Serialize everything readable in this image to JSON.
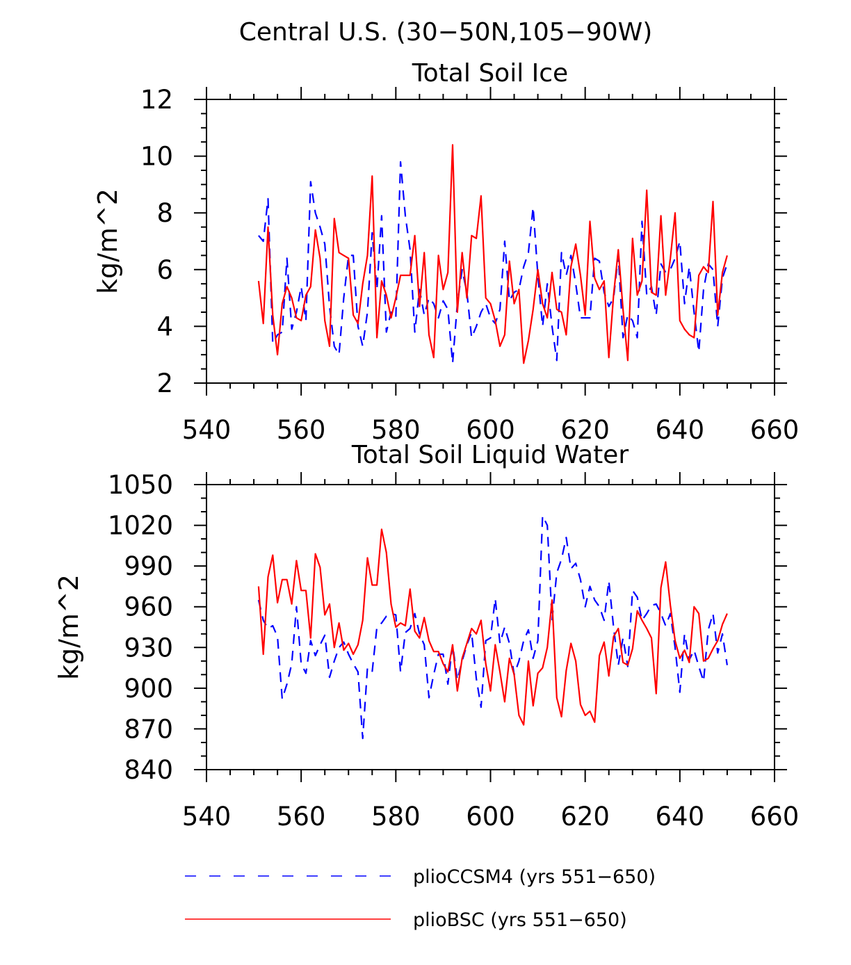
{
  "figure_title": "Central U.S. (30−50N,105−90W)",
  "legend": {
    "items": [
      {
        "label": "plioCCSM4 (yrs 551−650)",
        "color": "#0000ff",
        "style": "dashed"
      },
      {
        "label": "plioBSC (yrs 551−650)",
        "color": "#ff0000",
        "style": "solid"
      }
    ]
  },
  "chart_data": [
    {
      "type": "line",
      "title": "Total Soil Ice",
      "xlabel": "",
      "ylabel": "kg/m^2",
      "xlim": [
        540,
        660
      ],
      "ylim": [
        2,
        12
      ],
      "x_ticks": [
        540,
        560,
        580,
        600,
        620,
        640,
        660
      ],
      "y_ticks": [
        2,
        4,
        6,
        8,
        10,
        12
      ],
      "x_tick_labels": [
        "540",
        "560",
        "580",
        "600",
        "620",
        "640",
        "660"
      ],
      "y_tick_labels": [
        "2",
        "4",
        "6",
        "8",
        "10",
        "12"
      ],
      "x_start": 551,
      "x_end": 650,
      "grid": false,
      "legend_position": "bottom",
      "series": [
        {
          "name": "plioCCSM4 (yrs 551−650)",
          "color": "#0000ff",
          "style": "dashed",
          "values": [
            7.2,
            7.0,
            8.5,
            3.4,
            3.7,
            3.8,
            6.4,
            3.9,
            4.5,
            5.4,
            4.2,
            9.1,
            8.0,
            7.5,
            6.9,
            4.7,
            3.3,
            3.0,
            5.0,
            6.5,
            6.5,
            4.0,
            3.3,
            4.5,
            7.3,
            5.3,
            7.9,
            3.8,
            4.5,
            4.3,
            9.8,
            7.9,
            6.7,
            3.8,
            5.3,
            4.4,
            5.0,
            4.8,
            4.3,
            4.9,
            4.6,
            2.7,
            4.8,
            6.0,
            5.2,
            3.6,
            4.0,
            4.5,
            4.8,
            4.3,
            4.1,
            4.6,
            7.0,
            4.9,
            5.2,
            5.3,
            6.1,
            6.6,
            8.2,
            5.8,
            4.0,
            5.5,
            4.0,
            2.8,
            6.6,
            5.8,
            6.5,
            5.5,
            4.3,
            4.3,
            4.3,
            6.4,
            6.3,
            5.2,
            4.7,
            5.0,
            6.5,
            3.6,
            4.4,
            4.2,
            3.6,
            7.7,
            5.1,
            5.4,
            4.4,
            6.2,
            5.9,
            6.0,
            6.4,
            7.0,
            4.8,
            6.1,
            4.5,
            3.1,
            5.3,
            6.2,
            6.0,
            4.0,
            5.7,
            6.2
          ]
        },
        {
          "name": "plioBSC (yrs 551−650)",
          "color": "#ff0000",
          "style": "solid",
          "values": [
            5.6,
            4.1,
            7.5,
            4.4,
            3.0,
            4.8,
            5.4,
            5.0,
            4.3,
            4.2,
            5.1,
            5.4,
            7.4,
            6.4,
            4.2,
            3.3,
            7.8,
            6.6,
            6.5,
            6.4,
            4.4,
            4.1,
            5.5,
            6.5,
            9.3,
            3.6,
            5.6,
            5.1,
            4.3,
            5.0,
            5.8,
            5.8,
            5.8,
            7.2,
            4.7,
            6.6,
            3.7,
            2.9,
            6.5,
            5.3,
            5.9,
            10.4,
            4.5,
            6.6,
            5.0,
            7.2,
            7.1,
            8.6,
            5.0,
            4.8,
            4.2,
            3.3,
            3.7,
            6.3,
            4.8,
            5.3,
            2.7,
            3.5,
            4.6,
            6.0,
            4.8,
            4.3,
            5.9,
            4.6,
            4.5,
            3.7,
            6.1,
            6.9,
            5.8,
            4.4,
            7.7,
            5.7,
            5.3,
            5.6,
            2.9,
            5.1,
            6.7,
            4.6,
            2.8,
            7.1,
            5.1,
            5.6,
            8.8,
            5.2,
            5.1,
            7.9,
            5.1,
            6.4,
            8.0,
            4.2,
            3.9,
            3.7,
            3.6,
            5.8,
            6.1,
            5.9,
            8.4,
            4.4,
            5.9,
            6.5
          ]
        }
      ]
    },
    {
      "type": "line",
      "title": "Total Soil Liquid Water",
      "xlabel": "",
      "ylabel": "kg/m^2",
      "xlim": [
        540,
        660
      ],
      "ylim": [
        840,
        1050
      ],
      "x_ticks": [
        540,
        560,
        580,
        600,
        620,
        640,
        660
      ],
      "y_ticks": [
        840,
        870,
        900,
        930,
        960,
        990,
        1020,
        1050
      ],
      "x_tick_labels": [
        "540",
        "560",
        "580",
        "600",
        "620",
        "640",
        "660"
      ],
      "y_tick_labels": [
        "840",
        "870",
        "900",
        "930",
        "960",
        "990",
        "1020",
        "1050"
      ],
      "x_start": 551,
      "x_end": 650,
      "grid": false,
      "legend_position": "bottom",
      "series": [
        {
          "name": "plioCCSM4 (yrs 551−650)",
          "color": "#0000ff",
          "style": "dashed",
          "values": [
            965,
            950,
            944,
            946,
            938,
            892,
            903,
            918,
            960,
            918,
            911,
            935,
            924,
            932,
            939,
            908,
            920,
            930,
            934,
            925,
            918,
            912,
            863,
            915,
            912,
            945,
            948,
            953,
            955,
            954,
            912,
            941,
            944,
            955,
            940,
            932,
            893,
            910,
            925,
            925,
            903,
            932,
            906,
            920,
            932,
            941,
            907,
            886,
            935,
            937,
            966,
            933,
            945,
            933,
            910,
            920,
            935,
            943,
            922,
            935,
            1027,
            1020,
            950,
            985,
            995,
            1011,
            988,
            992,
            980,
            960,
            975,
            965,
            960,
            950,
            979,
            945,
            917,
            937,
            916,
            972,
            967,
            950,
            955,
            961,
            962,
            955,
            946,
            955,
            930,
            897,
            940,
            921,
            928,
            916,
            905,
            943,
            955,
            926,
            940,
            917
          ]
        },
        {
          "name": "plioBSC (yrs 551−650)",
          "color": "#ff0000",
          "style": "solid",
          "values": [
            975,
            925,
            982,
            998,
            963,
            980,
            980,
            962,
            994,
            972,
            972,
            937,
            999,
            989,
            954,
            962,
            930,
            948,
            928,
            933,
            925,
            932,
            950,
            996,
            976,
            976,
            1017,
            1000,
            962,
            945,
            948,
            946,
            973,
            942,
            937,
            952,
            935,
            927,
            927,
            918,
            912,
            932,
            898,
            922,
            933,
            944,
            940,
            950,
            918,
            898,
            932,
            912,
            890,
            922,
            910,
            880,
            873,
            920,
            887,
            911,
            915,
            930,
            965,
            893,
            879,
            913,
            933,
            920,
            888,
            880,
            883,
            875,
            924,
            934,
            909,
            938,
            944,
            919,
            917,
            929,
            957,
            950,
            944,
            937,
            896,
            974,
            993,
            961,
            935,
            922,
            928,
            919,
            960,
            955,
            920,
            922,
            929,
            935,
            947,
            955
          ]
        }
      ]
    }
  ]
}
